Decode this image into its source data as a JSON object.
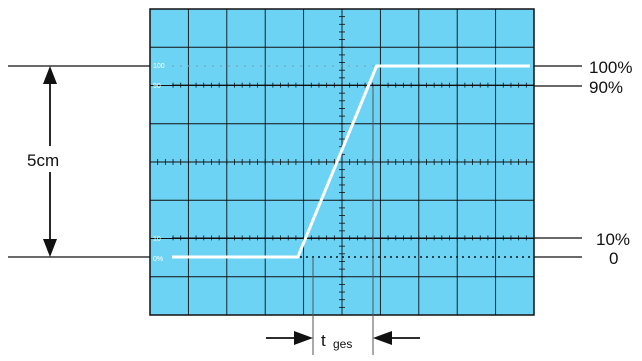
{
  "colors": {
    "screen": "#6cd3f4",
    "grid": "#111111",
    "trace": "#ffffff",
    "ink": "#111111"
  },
  "labels": {
    "left_measure": "5cm",
    "right_100": "100%",
    "right_90": "90%",
    "right_10": "10%",
    "right_0": "0",
    "screen_100": "100",
    "screen_90": "90",
    "screen_10": "10",
    "screen_0": "0%",
    "time_main": "t",
    "time_sub": "ges"
  },
  "chart_data": {
    "type": "line",
    "title": "",
    "xlabel": "",
    "ylabel": "",
    "grid": true,
    "divisions_x": 10,
    "divisions_y": 8,
    "reference_levels": [
      0,
      10,
      90,
      100
    ],
    "series": [
      {
        "x": [
          0,
          3.85,
          5.9,
          10
        ],
        "y": [
          0,
          0,
          100,
          100
        ]
      }
    ]
  }
}
